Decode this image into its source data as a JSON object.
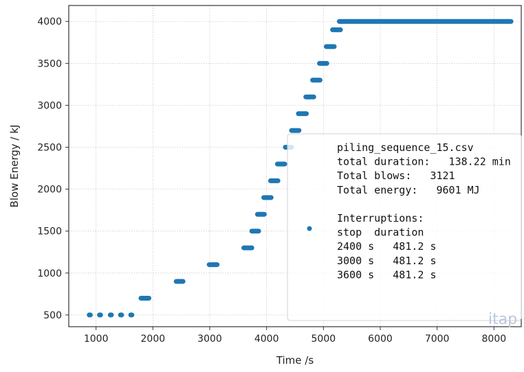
{
  "chart_data": {
    "type": "scatter",
    "xlabel": "Time /s",
    "ylabel": "Blow Energy / kJ",
    "xlim": [
      520,
      8480
    ],
    "ylim": [
      360,
      4190
    ],
    "x_ticks": [
      1000,
      2000,
      3000,
      4000,
      5000,
      6000,
      7000,
      8000
    ],
    "y_ticks": [
      500,
      1000,
      1500,
      2000,
      2500,
      3000,
      3500,
      4000
    ],
    "grid": true,
    "marker_color": "#1f77b4",
    "legend_placement": "lower-right",
    "point_groups": [
      {
        "x_start": 880,
        "x_end": 900,
        "y": 500
      },
      {
        "x_start": 1060,
        "x_end": 1080,
        "y": 500
      },
      {
        "x_start": 1250,
        "x_end": 1270,
        "y": 500
      },
      {
        "x_start": 1430,
        "x_end": 1450,
        "y": 500
      },
      {
        "x_start": 1610,
        "x_end": 1630,
        "y": 500
      },
      {
        "x_start": 1790,
        "x_end": 1930,
        "y": 700
      },
      {
        "x_start": 2410,
        "x_end": 2530,
        "y": 900
      },
      {
        "x_start": 2990,
        "x_end": 3130,
        "y": 1100
      },
      {
        "x_start": 3600,
        "x_end": 3740,
        "y": 1300
      },
      {
        "x_start": 3740,
        "x_end": 3860,
        "y": 1500
      },
      {
        "x_start": 3840,
        "x_end": 3960,
        "y": 1700
      },
      {
        "x_start": 3950,
        "x_end": 4080,
        "y": 1900
      },
      {
        "x_start": 4070,
        "x_end": 4200,
        "y": 2100
      },
      {
        "x_start": 4190,
        "x_end": 4320,
        "y": 2300
      },
      {
        "x_start": 4330,
        "x_end": 4440,
        "y": 2500
      },
      {
        "x_start": 4440,
        "x_end": 4570,
        "y": 2700
      },
      {
        "x_start": 4560,
        "x_end": 4700,
        "y": 2900
      },
      {
        "x_start": 4690,
        "x_end": 4830,
        "y": 3100
      },
      {
        "x_start": 4810,
        "x_end": 4940,
        "y": 3300
      },
      {
        "x_start": 4930,
        "x_end": 5060,
        "y": 3500
      },
      {
        "x_start": 5050,
        "x_end": 5190,
        "y": 3700
      },
      {
        "x_start": 5160,
        "x_end": 5300,
        "y": 3900
      },
      {
        "x_start": 5280,
        "x_end": 8300,
        "y": 4000
      }
    ],
    "legend": {
      "lines": [
        "piling_sequence_15.csv",
        "total duration:   138.22 min",
        "Total blows:   3121",
        "Total energy:   9601 MJ",
        "",
        "Interruptions:",
        "stop  duration",
        "2400 s   481.2 s",
        "3000 s   481.2 s",
        "3600 s   481.2 s"
      ]
    },
    "watermark": "itap"
  }
}
